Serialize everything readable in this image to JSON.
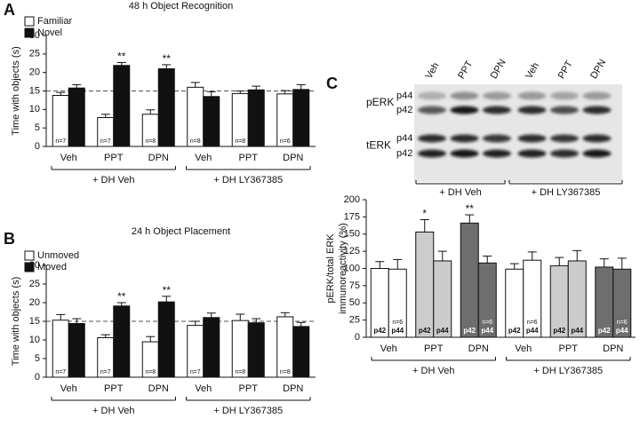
{
  "chart_data": [
    {
      "type": "bar",
      "panel_label": "A",
      "title": "48 h Object Recognition",
      "ylabel": "Time with objects (s)",
      "categories": [
        "Veh",
        "PPT",
        "DPN",
        "Veh",
        "PPT",
        "DPN"
      ],
      "groups": [
        "+ DH Veh",
        "+ DH LY367385"
      ],
      "series": [
        {
          "name": "Familiar",
          "color": "#ffffff",
          "values": [
            13.8,
            7.8,
            8.7,
            16.0,
            14.3,
            14.2
          ],
          "errors": [
            0.8,
            0.9,
            1.2,
            1.3,
            0.7,
            0.9
          ],
          "n_labels": [
            "n=7",
            "n=7",
            "n=8",
            "n=8",
            "n=8",
            "n=6"
          ]
        },
        {
          "name": "Novel",
          "color": "#111111",
          "values": [
            15.8,
            21.9,
            21.0,
            13.5,
            15.3,
            15.4
          ],
          "errors": [
            0.9,
            0.8,
            1.1,
            1.3,
            1.0,
            1.3
          ],
          "significance": [
            null,
            "**",
            "**",
            null,
            null,
            null
          ]
        }
      ],
      "reference_line": 15,
      "ylim": [
        0,
        30
      ],
      "yticks": [
        0,
        5,
        10,
        15,
        20,
        25,
        30
      ],
      "legend": "top-left"
    },
    {
      "type": "bar",
      "panel_label": "B",
      "title": "24 h Object Placement",
      "ylabel": "Time with objects (s)",
      "categories": [
        "Veh",
        "PPT",
        "DPN",
        "Veh",
        "PPT",
        "DPN"
      ],
      "groups": [
        "+ DH Veh",
        "+ DH LY367385"
      ],
      "series": [
        {
          "name": "Unmoved",
          "color": "#ffffff",
          "values": [
            15.3,
            10.6,
            9.5,
            13.9,
            15.2,
            16.2
          ],
          "errors": [
            1.5,
            0.8,
            1.4,
            1.1,
            1.7,
            1.1
          ],
          "n_labels": [
            "n=7",
            "n=7",
            "n=8",
            "n=7",
            "n=8",
            "n=8"
          ]
        },
        {
          "name": "Moved",
          "color": "#111111",
          "values": [
            14.4,
            19.1,
            20.2,
            16.0,
            14.6,
            13.6
          ],
          "errors": [
            1.3,
            0.9,
            1.5,
            1.2,
            1.1,
            1.1
          ],
          "significance": [
            null,
            "**",
            "**",
            null,
            null,
            null
          ]
        }
      ],
      "reference_line": 15,
      "ylim": [
        0,
        30
      ],
      "yticks": [
        0,
        5,
        10,
        15,
        20,
        25,
        30
      ],
      "legend": "top-left"
    },
    {
      "type": "bar",
      "panel_label": "C",
      "ylabel": [
        "pERK/total ERK",
        "immunoreactivity (%)"
      ],
      "categories": [
        "Veh",
        "PPT",
        "DPN",
        "Veh",
        "PPT",
        "DPN"
      ],
      "groups": [
        "+ DH Veh",
        "+ DH LY367385"
      ],
      "category_colors": [
        "#ffffff",
        "#cccccc",
        "#6e6e6e",
        "#ffffff",
        "#cccccc",
        "#6e6e6e"
      ],
      "series": [
        {
          "name": "p42",
          "values": [
            100,
            153,
            166,
            99,
            104,
            102
          ],
          "errors": [
            10,
            18,
            12,
            8,
            12,
            12
          ],
          "significance": [
            null,
            "*",
            "**",
            null,
            null,
            null
          ]
        },
        {
          "name": "p44",
          "values": [
            99,
            111,
            108,
            112,
            111,
            99
          ],
          "errors": [
            14,
            14,
            10,
            12,
            15,
            16
          ],
          "n_labels": [
            "n=6",
            null,
            "n=6",
            "n=6",
            null,
            "n=6"
          ]
        }
      ],
      "ylim": [
        0,
        200
      ],
      "yticks": [
        0,
        25,
        50,
        75,
        100,
        125,
        150,
        175,
        200
      ]
    }
  ],
  "blot": {
    "rows": [
      "pERK",
      "tERK"
    ],
    "bands": [
      "p44",
      "p42"
    ],
    "lanes": [
      "Veh",
      "PPT",
      "DPN",
      "Veh",
      "PPT",
      "DPN"
    ],
    "groups": [
      "+ DH Veh",
      "+ DH LY367385"
    ]
  }
}
